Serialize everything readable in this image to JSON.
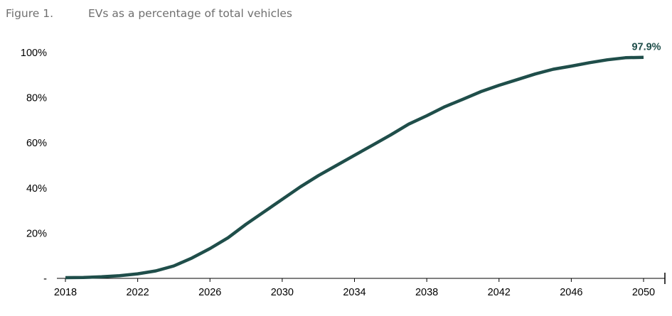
{
  "figure": {
    "number": "Figure 1.",
    "title": "EVs as a percentage of total vehicles"
  },
  "colors": {
    "line": "#1f4e4a",
    "axis": "#000000",
    "text": "#000000",
    "header": "#6f6f6f"
  },
  "chart_data": {
    "type": "line",
    "title": "EVs as a percentage of total vehicles",
    "xlabel": "",
    "ylabel": "",
    "xlim": [
      2018,
      2050
    ],
    "ylim": [
      0,
      100
    ],
    "grid": false,
    "x_ticks": [
      2018,
      2022,
      2026,
      2030,
      2034,
      2038,
      2042,
      2046,
      2050
    ],
    "x_tick_labels": [
      "2018",
      "2022",
      "2026",
      "2030",
      "2034",
      "2038",
      "2042",
      "2046",
      "2050"
    ],
    "y_ticks": [
      0,
      20,
      40,
      60,
      80,
      100
    ],
    "y_tick_labels": [
      "-",
      "20%",
      "40%",
      "60%",
      "80%",
      "100%"
    ],
    "x": [
      2018,
      2019,
      2020,
      2021,
      2022,
      2023,
      2024,
      2025,
      2026,
      2027,
      2028,
      2029,
      2030,
      2031,
      2032,
      2033,
      2034,
      2035,
      2036,
      2037,
      2038,
      2039,
      2040,
      2041,
      2042,
      2043,
      2044,
      2045,
      2046,
      2047,
      2048,
      2049,
      2050
    ],
    "series": [
      {
        "values": [
          0.3,
          0.4,
          0.7,
          1.2,
          2.0,
          3.3,
          5.5,
          9.0,
          13.2,
          18.0,
          24.0,
          29.5,
          35.0,
          40.5,
          45.5,
          50.0,
          54.5,
          59.0,
          63.5,
          68.3,
          72.0,
          76.0,
          79.3,
          82.7,
          85.5,
          88.0,
          90.5,
          92.6,
          94.0,
          95.5,
          96.8,
          97.7,
          97.9
        ]
      }
    ],
    "annotations": [
      {
        "x": 2050,
        "y": 97.9,
        "text": "97.9%"
      }
    ]
  }
}
